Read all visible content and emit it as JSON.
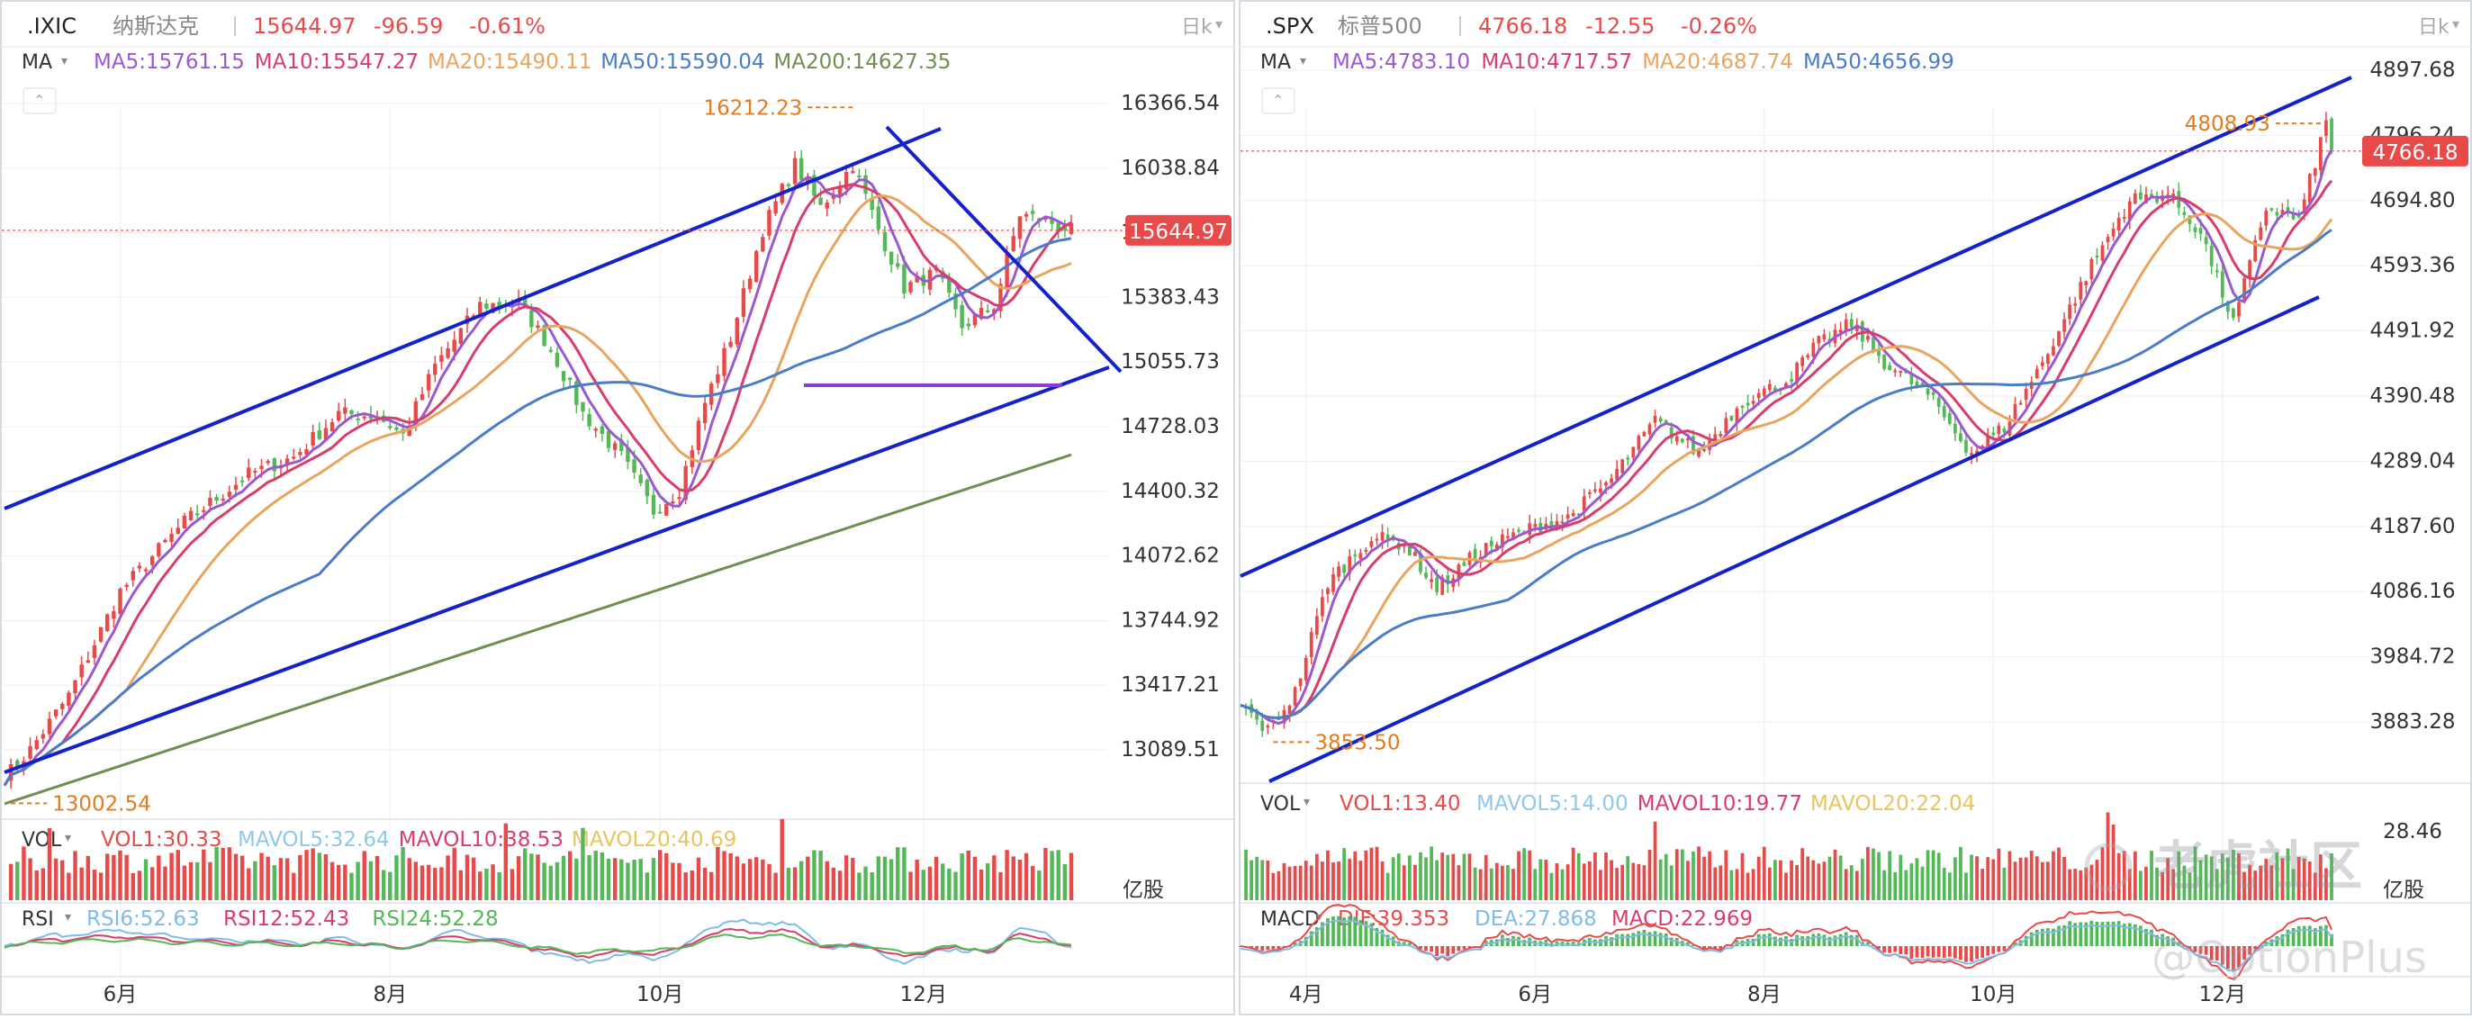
{
  "colors": {
    "up": "#e84a4a",
    "down": "#55b858",
    "ma5": "#9b59d0",
    "ma10": "#d83d6b",
    "ma20": "#e9a45e",
    "ma50": "#4a7cc9",
    "ma200": "#6f8e4f",
    "channel": "#1322c9",
    "support": "#8a3fd1",
    "annot": "#e07b20",
    "price_tag": "#e84a4a",
    "grid": "#eeeeee",
    "axis_text": "#333333",
    "sep": "#cfd3d8"
  },
  "chart_data": [
    {
      "type": "candlestick",
      "symbol": ".IXIC",
      "name": "纳斯达克",
      "last": "15644.97",
      "change": "-96.59",
      "change_pct": "-0.61%",
      "period": "日k",
      "ma_label": "MA",
      "ma_values": [
        {
          "label": "MA5:15761.15",
          "color": "ma5"
        },
        {
          "label": "MA10:15547.27",
          "color": "ma10"
        },
        {
          "label": "MA20:15490.11",
          "color": "ma20"
        },
        {
          "label": "MA50:15590.04",
          "color": "ma50"
        },
        {
          "label": "MA200:14627.35",
          "color": "ma200"
        }
      ],
      "y_ticks": [
        "16366.54",
        "16038.84",
        "15711.14",
        "15383.43",
        "15055.73",
        "14728.03",
        "14400.32",
        "14072.62",
        "13744.92",
        "13417.21",
        "13089.51"
      ],
      "ylim": [
        12950,
        16500
      ],
      "x_ticks": [
        "6月",
        "8月",
        "10月",
        "12月"
      ],
      "x_tick_days": [
        18,
        60,
        102,
        143
      ],
      "n_days": 166,
      "price_path": [
        [
          0,
          13120
        ],
        [
          4,
          13250
        ],
        [
          10,
          13500
        ],
        [
          18,
          13980
        ],
        [
          28,
          14300
        ],
        [
          38,
          14520
        ],
        [
          45,
          14600
        ],
        [
          52,
          14800
        ],
        [
          58,
          14790
        ],
        [
          62,
          14700
        ],
        [
          67,
          15020
        ],
        [
          74,
          15300
        ],
        [
          80,
          15310
        ],
        [
          85,
          15100
        ],
        [
          90,
          14800
        ],
        [
          96,
          14600
        ],
        [
          101,
          14350
        ],
        [
          105,
          14450
        ],
        [
          109,
          14850
        ],
        [
          113,
          15150
        ],
        [
          118,
          15650
        ],
        [
          123,
          15950
        ],
        [
          127,
          15750
        ],
        [
          132,
          15950
        ],
        [
          136,
          15650
        ],
        [
          140,
          15380
        ],
        [
          145,
          15450
        ],
        [
          149,
          15200
        ],
        [
          154,
          15300
        ],
        [
          158,
          15720
        ],
        [
          163,
          15680
        ],
        [
          166,
          15645
        ]
      ],
      "price_tag": "15644.97",
      "annotations": [
        {
          "label": "16212.23",
          "day": 132,
          "price": 16212.23
        },
        {
          "label": "13002.54",
          "day": 1,
          "price": 13002.54
        }
      ],
      "volume_label": "VOL",
      "volume_values": [
        "VOL1:30.33",
        "MAVOL5:32.64",
        "MAVOL10:38.53",
        "MAVOL20:40.69"
      ],
      "volume_unit": "亿股",
      "indicator_label": "RSI",
      "indicator_values": [
        "RSI6:52.63",
        "RSI12:52.43",
        "RSI24:52.28"
      ]
    },
    {
      "type": "candlestick",
      "symbol": ".SPX",
      "name": "标普500",
      "last": "4766.18",
      "change": "-12.55",
      "change_pct": "-0.26%",
      "period": "日k",
      "ma_label": "MA",
      "ma_values": [
        {
          "label": "MA5:4783.10",
          "color": "ma5"
        },
        {
          "label": "MA10:4717.57",
          "color": "ma10"
        },
        {
          "label": "MA20:4687.74",
          "color": "ma20"
        },
        {
          "label": "MA50:4656.99",
          "color": "ma50"
        }
      ],
      "y_ticks": [
        "4897.68",
        "4796.24",
        "4694.80",
        "4593.36",
        "4491.92",
        "4390.48",
        "4289.04",
        "4187.60",
        "4086.16",
        "3984.72",
        "3883.28"
      ],
      "ylim": [
        3790,
        4930
      ],
      "x_ticks": [
        "4月",
        "6月",
        "8月",
        "10月",
        "12月"
      ],
      "x_tick_days": [
        12,
        54,
        96,
        138,
        180
      ],
      "n_days": 200,
      "price_path": [
        [
          0,
          3910
        ],
        [
          5,
          3870
        ],
        [
          10,
          3930
        ],
        [
          16,
          4100
        ],
        [
          24,
          4170
        ],
        [
          30,
          4160
        ],
        [
          36,
          4090
        ],
        [
          44,
          4150
        ],
        [
          52,
          4180
        ],
        [
          60,
          4200
        ],
        [
          68,
          4260
        ],
        [
          76,
          4350
        ],
        [
          84,
          4300
        ],
        [
          92,
          4380
        ],
        [
          100,
          4410
        ],
        [
          106,
          4470
        ],
        [
          112,
          4500
        ],
        [
          118,
          4440
        ],
        [
          126,
          4390
        ],
        [
          134,
          4300
        ],
        [
          140,
          4340
        ],
        [
          147,
          4440
        ],
        [
          156,
          4590
        ],
        [
          163,
          4690
        ],
        [
          170,
          4700
        ],
        [
          176,
          4640
        ],
        [
          182,
          4500
        ],
        [
          188,
          4680
        ],
        [
          194,
          4660
        ],
        [
          199,
          4810
        ],
        [
          200,
          4766
        ]
      ],
      "price_tag": "4766.18",
      "annotations": [
        {
          "label": "4808.93",
          "day": 198,
          "price": 4808.93
        },
        {
          "label": "3853.50",
          "day": 6,
          "price": 3853.5
        }
      ],
      "volume_label": "VOL",
      "volume_values": [
        "VOL1:13.40",
        "MAVOL5:14.00",
        "MAVOL10:19.77",
        "MAVOL20:22.04"
      ],
      "volume_ticks": [
        "28.46"
      ],
      "volume_unit": "亿股",
      "indicator_label": "MACD",
      "indicator_values": [
        "DIF:39.353",
        "DEA:27.868",
        "MACD:22.969"
      ]
    }
  ],
  "watermark": {
    "line1": "老虎社区",
    "line2": "@OptionPlus"
  }
}
